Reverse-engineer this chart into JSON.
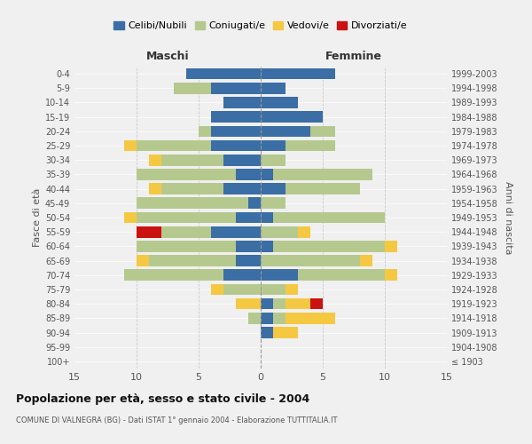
{
  "age_groups": [
    "100+",
    "95-99",
    "90-94",
    "85-89",
    "80-84",
    "75-79",
    "70-74",
    "65-69",
    "60-64",
    "55-59",
    "50-54",
    "45-49",
    "40-44",
    "35-39",
    "30-34",
    "25-29",
    "20-24",
    "15-19",
    "10-14",
    "5-9",
    "0-4"
  ],
  "birth_years": [
    "≤ 1903",
    "1904-1908",
    "1909-1913",
    "1914-1918",
    "1919-1923",
    "1924-1928",
    "1929-1933",
    "1934-1938",
    "1939-1943",
    "1944-1948",
    "1949-1953",
    "1954-1958",
    "1959-1963",
    "1964-1968",
    "1969-1973",
    "1974-1978",
    "1979-1983",
    "1984-1988",
    "1989-1993",
    "1994-1998",
    "1999-2003"
  ],
  "colors": {
    "celibi": "#3a6ea5",
    "coniugati": "#b5c98e",
    "vedovi": "#f5c842",
    "divorziati": "#cc1111"
  },
  "maschi": {
    "celibi": [
      0,
      0,
      0,
      0,
      0,
      0,
      3,
      2,
      2,
      4,
      2,
      1,
      3,
      2,
      3,
      4,
      4,
      4,
      3,
      4,
      6
    ],
    "coniugati": [
      0,
      0,
      0,
      1,
      0,
      3,
      8,
      7,
      8,
      4,
      8,
      9,
      5,
      8,
      5,
      6,
      1,
      0,
      0,
      3,
      0
    ],
    "vedovi": [
      0,
      0,
      0,
      0,
      2,
      1,
      0,
      1,
      0,
      0,
      1,
      0,
      1,
      0,
      1,
      1,
      0,
      0,
      0,
      0,
      0
    ],
    "divorziati": [
      0,
      0,
      0,
      0,
      0,
      0,
      0,
      0,
      0,
      2,
      0,
      0,
      0,
      0,
      0,
      0,
      0,
      0,
      0,
      0,
      0
    ]
  },
  "femmine": {
    "celibi": [
      0,
      0,
      1,
      1,
      1,
      0,
      3,
      0,
      1,
      0,
      1,
      0,
      2,
      1,
      0,
      2,
      4,
      5,
      3,
      2,
      6
    ],
    "coniugati": [
      0,
      0,
      0,
      1,
      1,
      2,
      7,
      8,
      9,
      3,
      9,
      2,
      6,
      8,
      2,
      4,
      2,
      0,
      0,
      0,
      0
    ],
    "vedovi": [
      0,
      0,
      2,
      4,
      2,
      1,
      1,
      1,
      1,
      1,
      0,
      0,
      0,
      0,
      0,
      0,
      0,
      0,
      0,
      0,
      0
    ],
    "divorziati": [
      0,
      0,
      0,
      0,
      1,
      0,
      0,
      0,
      0,
      0,
      0,
      0,
      0,
      0,
      0,
      0,
      0,
      0,
      0,
      0,
      0
    ]
  },
  "xlim": 15,
  "title": "Popolazione per età, sesso e stato civile - 2004",
  "subtitle": "COMUNE DI VALNEGRA (BG) - Dati ISTAT 1° gennaio 2004 - Elaborazione TUTTITALIA.IT",
  "ylabel": "Fasce di età",
  "ylabel_right": "Anni di nascita",
  "xlabel_left": "Maschi",
  "xlabel_right": "Femmine",
  "legend_labels": [
    "Celibi/Nubili",
    "Coniugati/e",
    "Vedovi/e",
    "Divorziati/e"
  ],
  "bg_color": "#f0f0f0"
}
